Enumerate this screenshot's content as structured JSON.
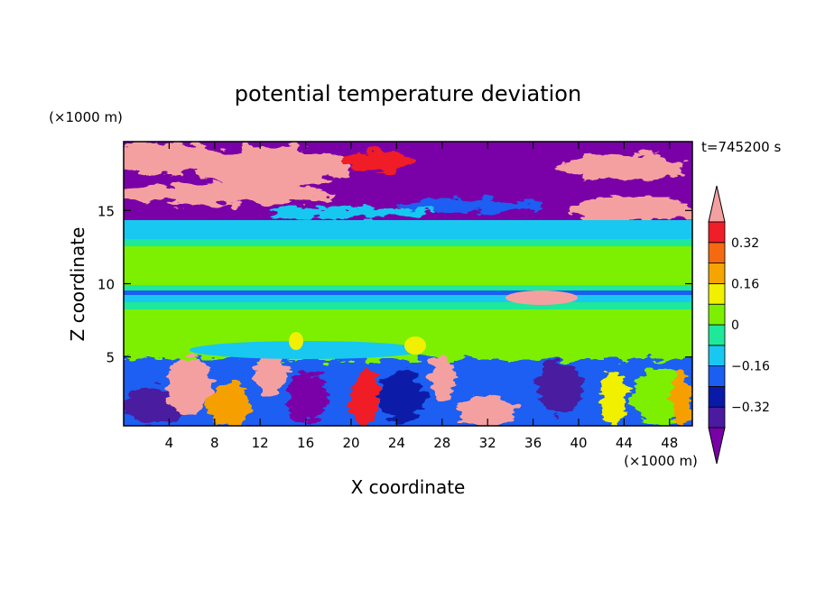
{
  "chart_data": {
    "type": "heatmap",
    "title": "potential temperature deviation",
    "xlabel": "X coordinate",
    "ylabel": "Z coordinate",
    "x_unit": "(×1000 m)",
    "y_unit": "(×1000 m)",
    "time_label": "t=745200 s",
    "xlim": [
      0,
      50
    ],
    "ylim": [
      0.3,
      19.7
    ],
    "x_ticks": [
      4,
      8,
      12,
      16,
      20,
      24,
      28,
      32,
      36,
      40,
      44,
      48
    ],
    "y_ticks": [
      5,
      10,
      15
    ],
    "colorbar": {
      "levels": [
        -0.4,
        -0.32,
        -0.24,
        -0.16,
        -0.08,
        0,
        0.08,
        0.16,
        0.24,
        0.32,
        0.4
      ],
      "labels": [
        "0.32",
        "0.16",
        "0",
        "-0.16",
        "-0.32"
      ],
      "label_values": [
        0.32,
        0.16,
        0,
        -0.16,
        -0.32
      ],
      "colors": [
        "#7a00a8",
        "#4a1aa0",
        "#0a1aa8",
        "#1a5ef2",
        "#18c8f0",
        "#1ee89a",
        "#7cf000",
        "#f0f000",
        "#f5a400",
        "#f56a10",
        "#f01e28",
        "#f5a0a0"
      ],
      "extend": "both"
    }
  }
}
